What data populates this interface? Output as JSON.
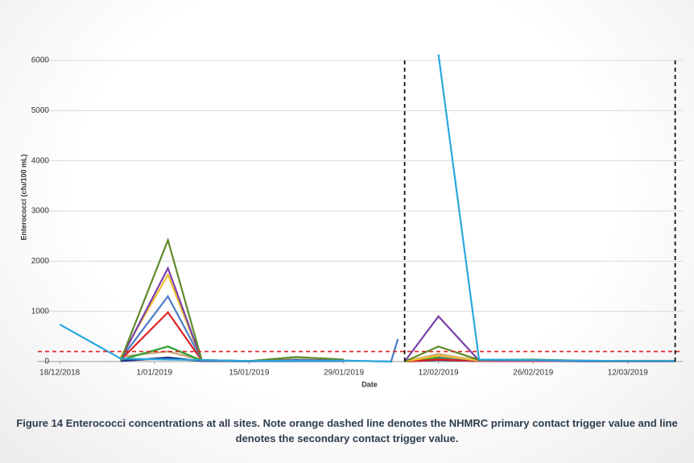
{
  "chart_data": {
    "type": "line",
    "y_label": "Enterococci (cfu/100 mL)",
    "x_label": "Date",
    "caption": "Figure 14 Enterococci concentrations at all sites. Note orange dashed line denotes the NHMRC primary contact trigger value and line denotes the secondary contact trigger value.",
    "x": [
      "2018-12-18",
      "2018-12-27",
      "2019-01-03",
      "2019-01-08",
      "2019-01-15",
      "2019-01-22",
      "2019-01-29",
      "2019-02-05",
      "2019-02-06",
      "2019-02-07",
      "2019-02-12",
      "2019-02-18",
      "2019-02-26",
      "2019-03-05",
      "2019-03-12",
      "2019-03-19"
    ],
    "xlim": [
      "2018-12-15",
      "2019-03-20"
    ],
    "xticks": [
      {
        "value": "2018-12-18",
        "label": "18/12/2018"
      },
      {
        "value": "2019-01-01",
        "label": "1/01/2019"
      },
      {
        "value": "2019-01-15",
        "label": "15/01/2019"
      },
      {
        "value": "2019-01-29",
        "label": "29/01/2019"
      },
      {
        "value": "2019-02-12",
        "label": "12/02/2019"
      },
      {
        "value": "2019-02-26",
        "label": "26/02/2019"
      },
      {
        "value": "2019-03-12",
        "label": "12/03/2019"
      }
    ],
    "ylim": [
      0,
      6000
    ],
    "yticks": [
      0,
      1000,
      2000,
      3000,
      4000,
      5000,
      6000
    ],
    "grid": true,
    "series": [
      {
        "color": "#c9a27a",
        "values": [
          null,
          100,
          200,
          30,
          10,
          30,
          20,
          null,
          null,
          0,
          150,
          20,
          20,
          10,
          10,
          10
        ]
      },
      {
        "color": "#8a8a8a",
        "values": [
          null,
          20,
          60,
          10,
          5,
          20,
          10,
          null,
          null,
          0,
          60,
          10,
          10,
          10,
          5,
          5
        ]
      },
      {
        "color": "#1f2f8f",
        "values": [
          null,
          10,
          80,
          10,
          5,
          10,
          10,
          null,
          null,
          0,
          30,
          10,
          10,
          5,
          5,
          5
        ]
      },
      {
        "color": "#2ca02c",
        "values": [
          null,
          30,
          300,
          20,
          10,
          40,
          20,
          null,
          null,
          0,
          80,
          20,
          20,
          10,
          10,
          10
        ]
      },
      {
        "color": "#e01f1f",
        "values": [
          null,
          30,
          980,
          20,
          10,
          30,
          20,
          null,
          null,
          0,
          40,
          10,
          10,
          10,
          5,
          5
        ]
      },
      {
        "color": "#4a7cc4",
        "values": [
          null,
          50,
          1300,
          30,
          10,
          20,
          20,
          0,
          450,
          null,
          100,
          20,
          20,
          10,
          10,
          10
        ]
      },
      {
        "color": "#f0c030",
        "values": [
          null,
          80,
          1730,
          20,
          10,
          30,
          20,
          null,
          null,
          0,
          120,
          20,
          20,
          10,
          10,
          10
        ]
      },
      {
        "color": "#7a3fa8",
        "values": [
          null,
          40,
          1860,
          20,
          5,
          30,
          20,
          null,
          null,
          0,
          900,
          20,
          20,
          10,
          10,
          10
        ]
      },
      {
        "color": "#5e8a2a",
        "values": [
          null,
          20,
          2420,
          30,
          10,
          90,
          40,
          null,
          null,
          0,
          300,
          30,
          40,
          20,
          10,
          10
        ]
      },
      {
        "color": "#29a8dc",
        "values": [
          740,
          60,
          40,
          30,
          10,
          20,
          20,
          0,
          null,
          null,
          6120,
          40,
          30,
          20,
          10,
          10
        ]
      }
    ],
    "hlines": [
      {
        "value": 200,
        "color": "#e02020"
      }
    ],
    "vlines": [
      {
        "value": "2019-02-07",
        "color": "#111111"
      },
      {
        "value": "2019-03-19",
        "color": "#111111"
      }
    ]
  }
}
